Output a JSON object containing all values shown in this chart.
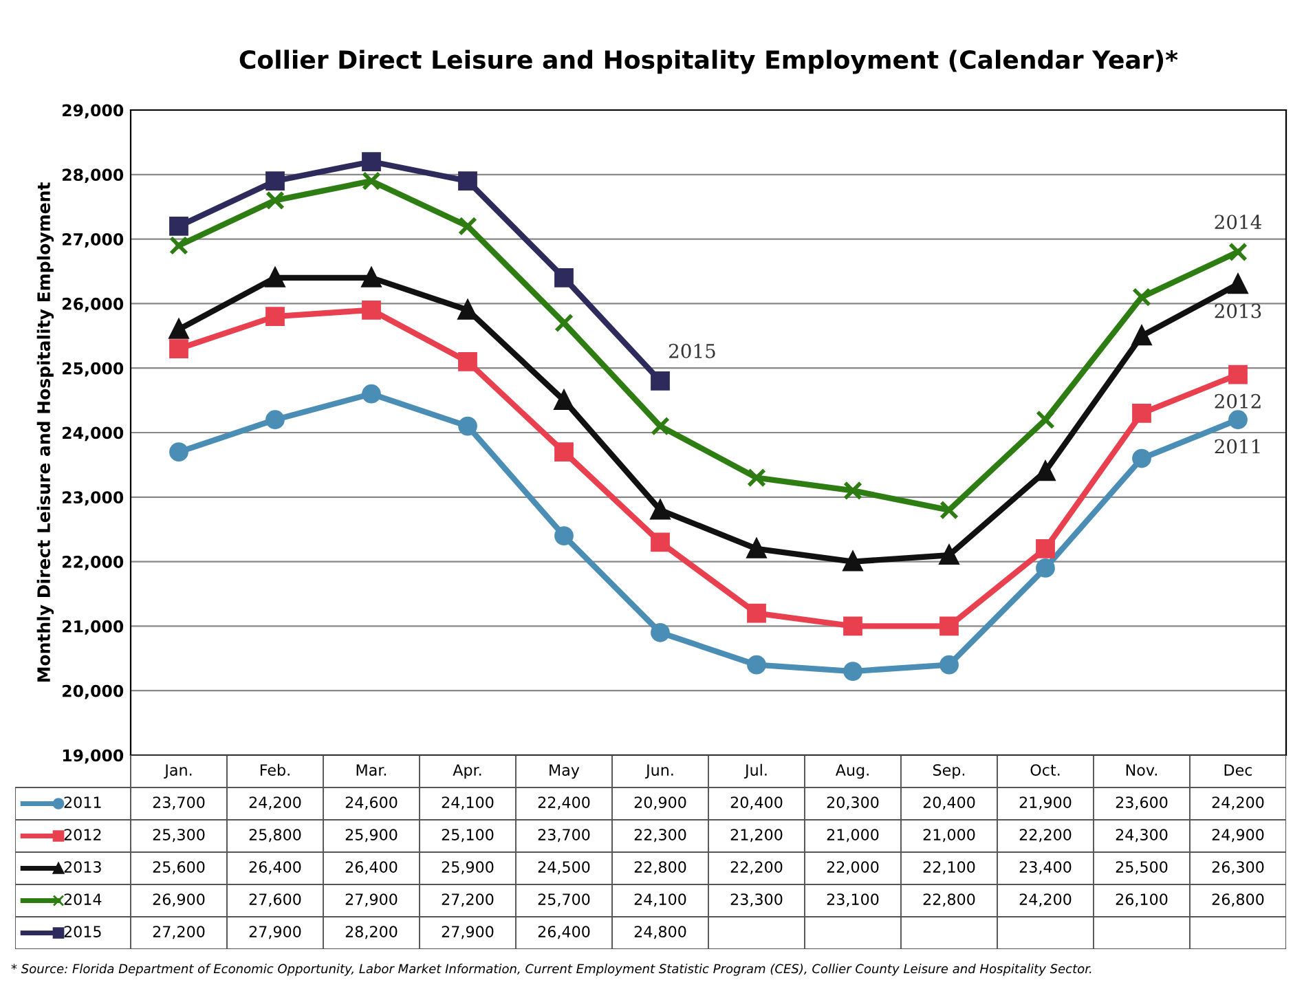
{
  "chart_data": {
    "type": "line",
    "title": "Collier Direct Leisure and Hospitality Employment (Calendar Year)*",
    "ylabel": "Monthly Direct Leisure and Hospitality Employment",
    "categories": [
      "Jan.",
      "Feb.",
      "Mar.",
      "Apr.",
      "May",
      "Jun.",
      "Jul.",
      "Aug.",
      "Sep.",
      "Oct.",
      "Nov.",
      "Dec"
    ],
    "series": [
      {
        "name": "2011",
        "color": "#4a8db5",
        "marker": "circle",
        "values": [
          23700,
          24200,
          24600,
          24100,
          22400,
          20900,
          20400,
          20300,
          20400,
          21900,
          23600,
          24200
        ],
        "value_labels": [
          "23,700",
          "24,200",
          "24,600",
          "24,100",
          "22,400",
          "20,900",
          "20,400",
          "20,300",
          "20,400",
          "21,900",
          "23,600",
          "24,200"
        ]
      },
      {
        "name": "2012",
        "color": "#e8404f",
        "marker": "square",
        "values": [
          25300,
          25800,
          25900,
          25100,
          23700,
          22300,
          21200,
          21000,
          21000,
          22200,
          24300,
          24900
        ],
        "value_labels": [
          "25,300",
          "25,800",
          "25,900",
          "25,100",
          "23,700",
          "22,300",
          "21,200",
          "21,000",
          "21,000",
          "22,200",
          "24,300",
          "24,900"
        ]
      },
      {
        "name": "2013",
        "color": "#111111",
        "marker": "triangle",
        "values": [
          25600,
          26400,
          26400,
          25900,
          24500,
          22800,
          22200,
          22000,
          22100,
          23400,
          25500,
          26300
        ],
        "value_labels": [
          "25,600",
          "26,400",
          "26,400",
          "25,900",
          "24,500",
          "22,800",
          "22,200",
          "22,000",
          "22,100",
          "23,400",
          "25,500",
          "26,300"
        ]
      },
      {
        "name": "2014",
        "color": "#2e7d12",
        "marker": "cross",
        "values": [
          26900,
          27600,
          27900,
          27200,
          25700,
          24100,
          23300,
          23100,
          22800,
          24200,
          26100,
          26800
        ],
        "value_labels": [
          "26,900",
          "27,600",
          "27,900",
          "27,200",
          "25,700",
          "24,100",
          "23,300",
          "23,100",
          "22,800",
          "24,200",
          "26,100",
          "26,800"
        ]
      },
      {
        "name": "2015",
        "color": "#2e2a5c",
        "marker": "square",
        "values": [
          27200,
          27900,
          28200,
          27900,
          26400,
          24800,
          null,
          null,
          null,
          null,
          null,
          null
        ],
        "value_labels": [
          "27,200",
          "27,900",
          "28,200",
          "27,900",
          "26,400",
          "24,800",
          null,
          null,
          null,
          null,
          null,
          null
        ]
      }
    ],
    "ylim": [
      19000,
      29000
    ],
    "yticks": [
      {
        "value": 19000,
        "label": "19,000"
      },
      {
        "value": 20000,
        "label": "20,000"
      },
      {
        "value": 21000,
        "label": "21,000"
      },
      {
        "value": 22000,
        "label": "22,000"
      },
      {
        "value": 23000,
        "label": "23,000"
      },
      {
        "value": 24000,
        "label": "24,000"
      },
      {
        "value": 25000,
        "label": "25,000"
      },
      {
        "value": 26000,
        "label": "26,000"
      },
      {
        "value": 27000,
        "label": "27,000"
      },
      {
        "value": 28000,
        "label": "28,000"
      },
      {
        "value": 29000,
        "label": "29,000"
      }
    ],
    "grid": "y",
    "tick_labels": "y",
    "legend": "bottom left",
    "line_style": "solid",
    "annotations": [
      "* Source: Florida Department of Economic Opportunity, Labor Market Information, Current Employment Statistic Program (CES), Collier County Leisure and Hospitality Sector."
    ]
  }
}
